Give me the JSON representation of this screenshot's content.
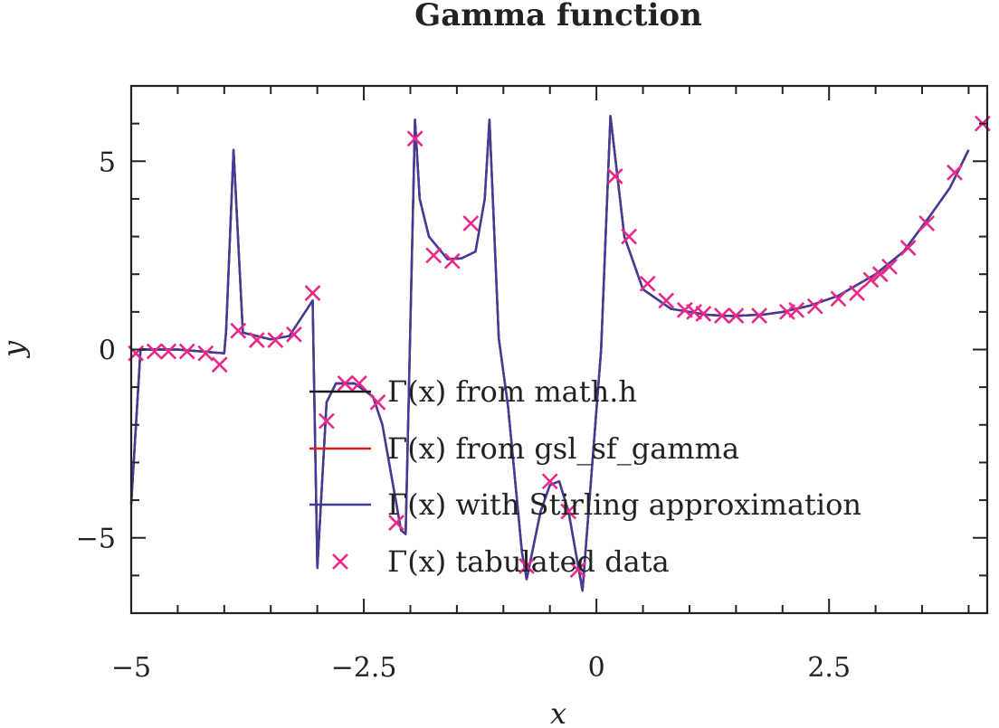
{
  "chart_data": {
    "type": "line",
    "title": "Gamma function",
    "xlabel": "x",
    "ylabel": "y",
    "xlim": [
      -5,
      4.2
    ],
    "ylim": [
      -7,
      7
    ],
    "xticks": [
      -5,
      -2.5,
      0,
      2.5
    ],
    "xtick_labels": [
      "−5",
      "−2.5",
      "0",
      "2.5"
    ],
    "yticks": [
      -5,
      0,
      5
    ],
    "ytick_labels": [
      "−5",
      "0",
      "5"
    ],
    "grid": false,
    "legend_placement": "center",
    "colors": {
      "mathh": "#1a1a1a",
      "gsl": "#e41a1c",
      "stirling": "#3f3d99",
      "tabulated": "#e7298a"
    },
    "series": [
      {
        "name": "Γ(x) from math.h",
        "kind": "line",
        "x": [
          -5,
          -4.9,
          -4.5,
          -4.0,
          -3.98,
          -3.9,
          -3.8,
          -3.5,
          -3.3,
          -3.05,
          -3.0,
          -2.9,
          -2.8,
          -2.6,
          -2.4,
          -2.3,
          -2.1,
          -2.05,
          -1.95,
          -1.9,
          -1.8,
          -1.6,
          -1.45,
          -1.3,
          -1.2,
          -1.15,
          -1.05,
          -0.95,
          -0.8,
          -0.75,
          -0.6,
          -0.5,
          -0.4,
          -0.3,
          -0.2,
          -0.15,
          0.05,
          0.15,
          0.3,
          0.5,
          0.8,
          1.0,
          1.2,
          1.46,
          1.8,
          2.0,
          2.3,
          2.6,
          3.0,
          3.3,
          3.6,
          3.8,
          4.0
        ],
        "y": [
          -4.1,
          0.0,
          0.0,
          -0.1,
          0.5,
          5.3,
          0.45,
          0.27,
          0.36,
          1.3,
          -5.8,
          -1.4,
          -0.9,
          -0.9,
          -1.25,
          -2.0,
          -4.8,
          -4.9,
          6.1,
          4.0,
          3.0,
          2.4,
          2.42,
          2.6,
          4.0,
          6.1,
          0.3,
          -1.5,
          -5.4,
          -6.1,
          -4.3,
          -3.6,
          -3.5,
          -4.3,
          -5.7,
          -6.4,
          0.0,
          6.2,
          3.0,
          1.6,
          1.08,
          1.0,
          0.92,
          0.89,
          0.93,
          1.0,
          1.17,
          1.43,
          2.0,
          2.6,
          3.6,
          4.3,
          5.3
        ]
      },
      {
        "name": "Γ(x) from gsl_sf_gamma",
        "kind": "line",
        "same_as": 0
      },
      {
        "name": "Γ(x) with Stirling approximation",
        "kind": "line",
        "same_as": 0
      },
      {
        "name": "Γ(x) tabulated data",
        "kind": "marker",
        "marker": "x",
        "x": [
          -4.95,
          -4.75,
          -4.6,
          -4.4,
          -4.2,
          -4.05,
          -3.85,
          -3.65,
          -3.45,
          -3.25,
          -3.05,
          -2.9,
          -2.7,
          -2.55,
          -2.35,
          -2.15,
          -1.95,
          -1.75,
          -1.55,
          -1.35,
          -0.75,
          -0.5,
          -0.3,
          -0.2,
          0.2,
          0.35,
          0.55,
          0.75,
          0.95,
          1.05,
          1.15,
          1.35,
          1.5,
          1.75,
          2.05,
          2.15,
          2.35,
          2.6,
          2.8,
          2.95,
          3.05,
          3.15,
          3.35,
          3.55,
          3.85,
          4.15
        ],
        "y": [
          -0.1,
          -0.05,
          -0.05,
          -0.05,
          -0.1,
          -0.4,
          0.5,
          0.25,
          0.25,
          0.4,
          1.5,
          -1.9,
          -0.9,
          -0.9,
          -1.4,
          -4.6,
          5.6,
          2.5,
          2.35,
          3.35,
          -5.75,
          -3.5,
          -4.3,
          -5.85,
          4.6,
          3.0,
          1.75,
          1.3,
          1.05,
          1.0,
          0.95,
          0.9,
          0.9,
          0.9,
          1.0,
          1.05,
          1.15,
          1.35,
          1.5,
          1.85,
          2.0,
          2.2,
          2.7,
          3.35,
          4.7,
          6.0
        ]
      }
    ]
  }
}
